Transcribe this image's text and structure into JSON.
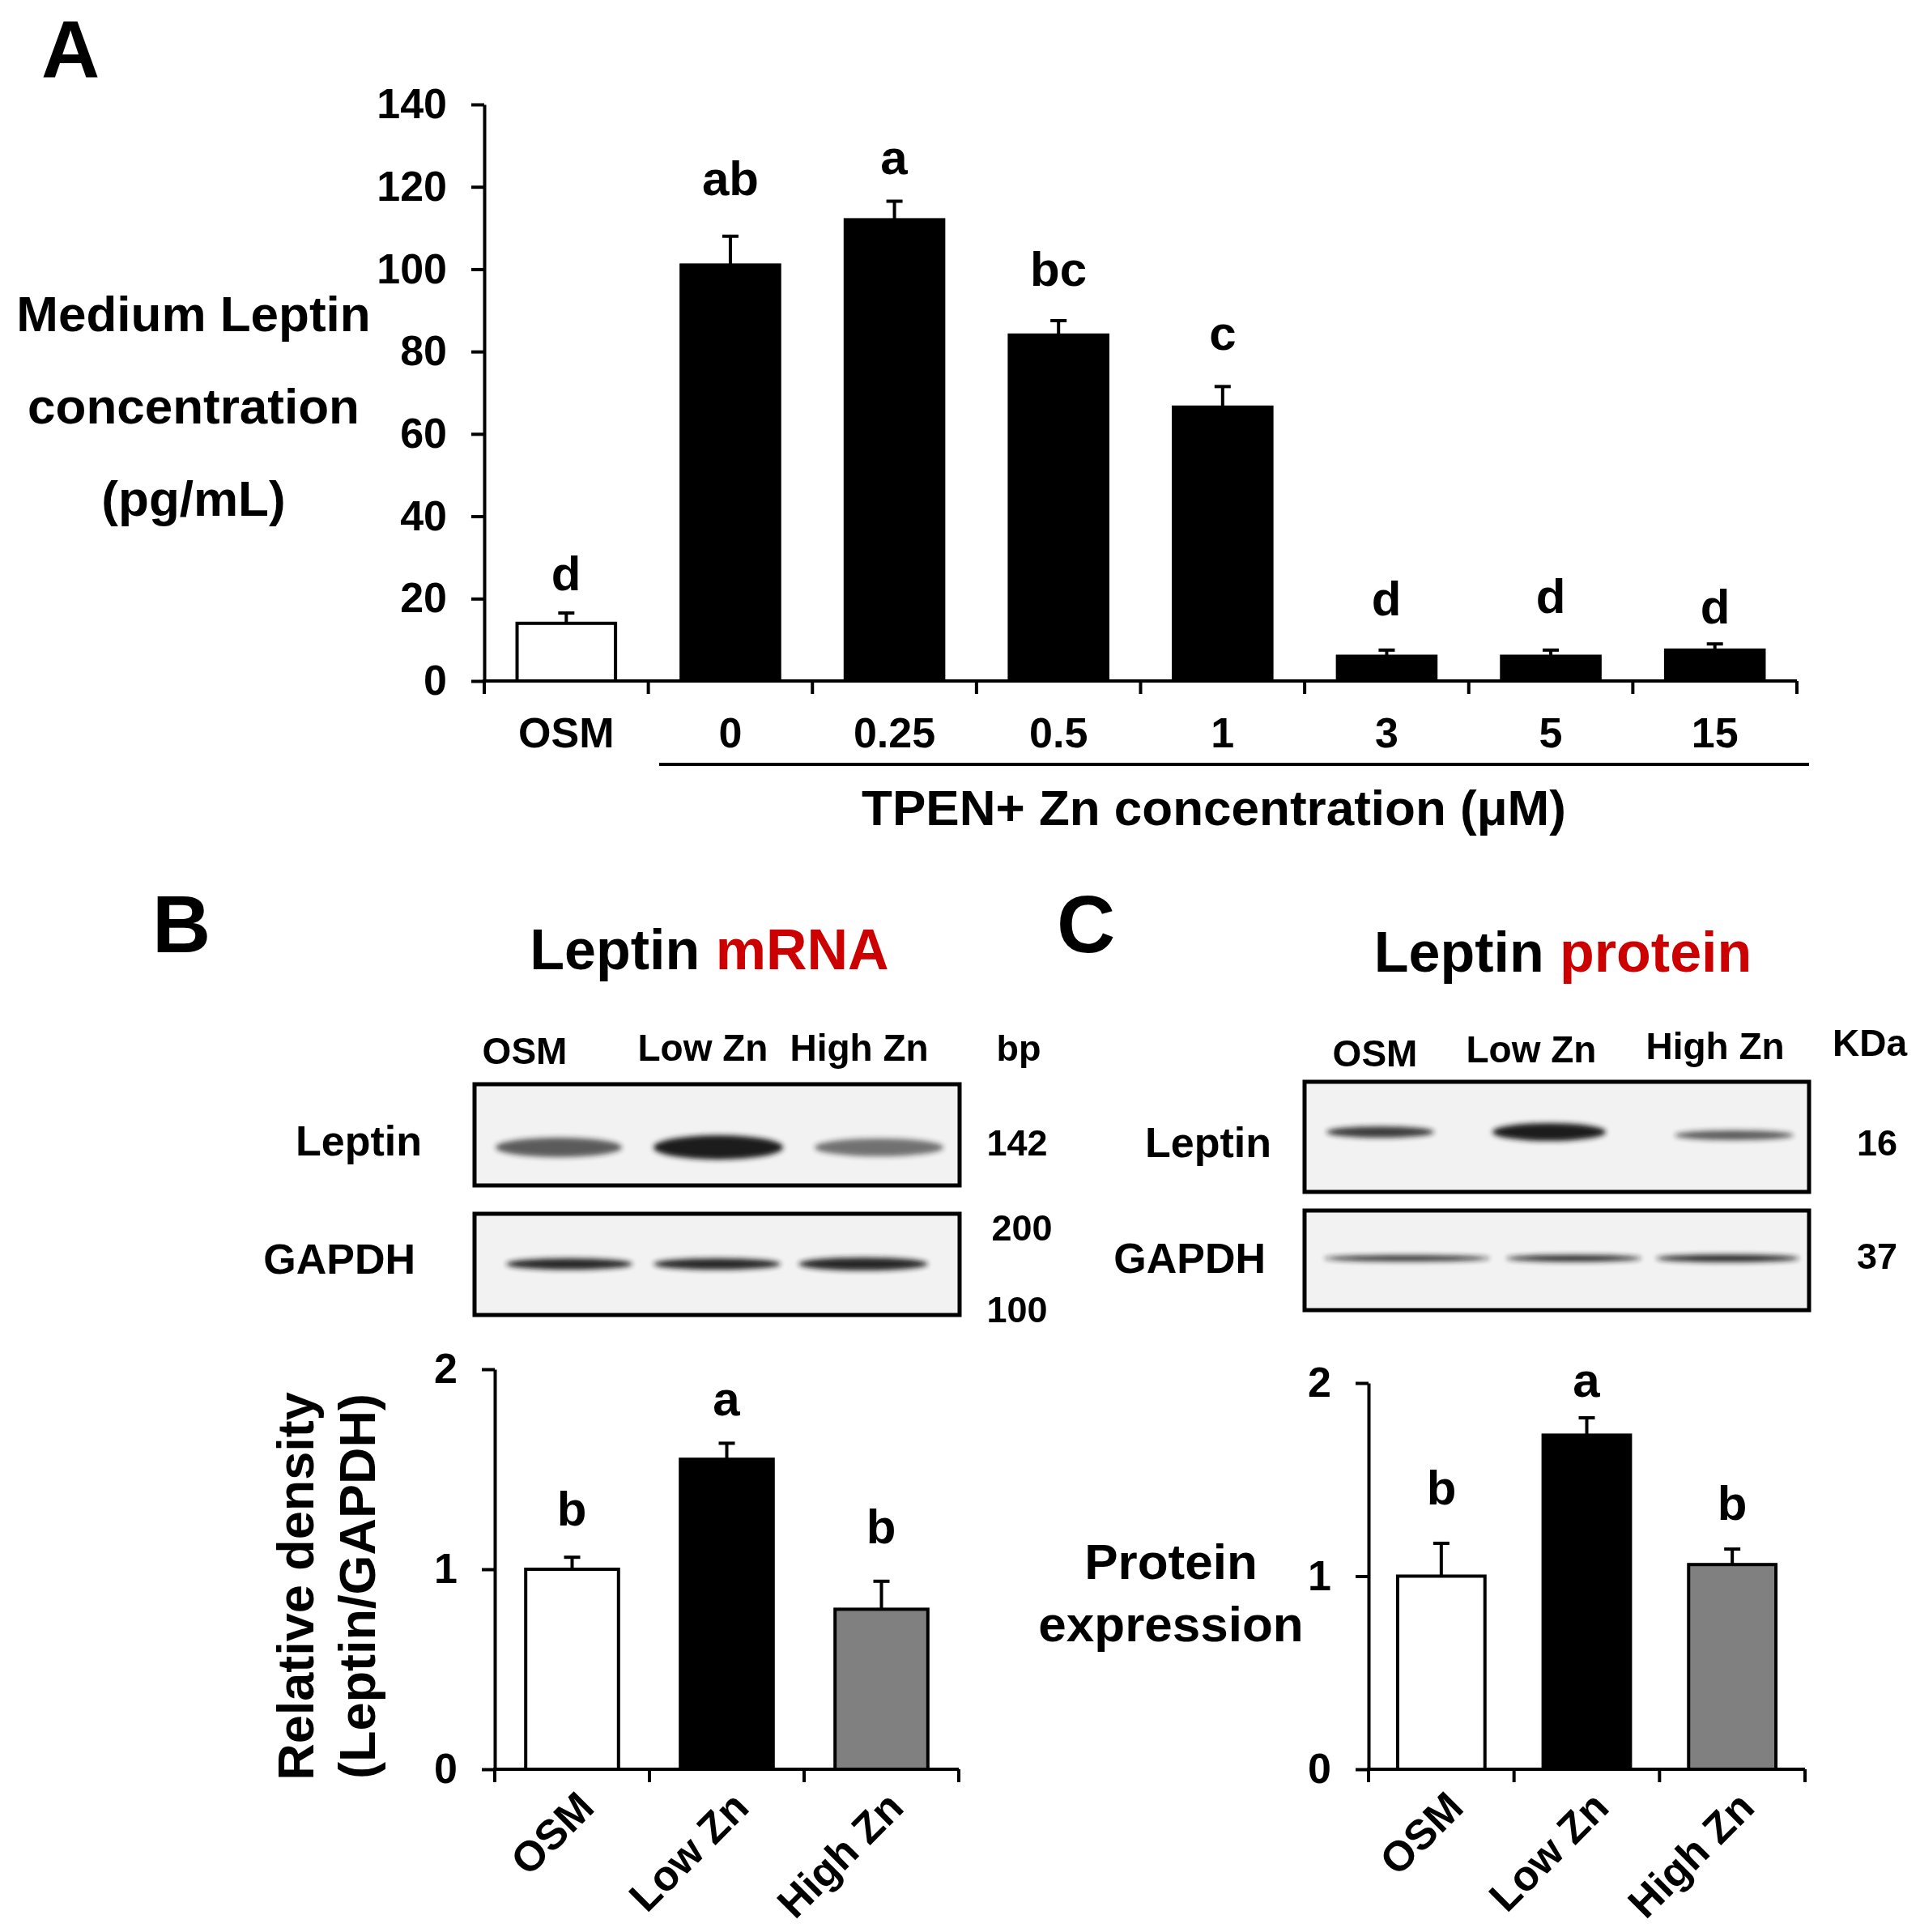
{
  "chart_data": [
    {
      "type": "bar",
      "categories": [
        "OSM",
        "0",
        "0.25",
        "0.5",
        "1",
        "3",
        "5",
        "15"
      ],
      "values": [
        14,
        101,
        112,
        84,
        66.5,
        6,
        6,
        7.5
      ],
      "colors": [
        "#ffffff",
        "#000000",
        "#000000",
        "#000000",
        "#000000",
        "#000000",
        "#000000",
        "#000000"
      ],
      "errors": [
        [
          14,
          16.5
        ],
        [
          101,
          108
        ],
        [
          112,
          116.5
        ],
        [
          84,
          87.5
        ],
        [
          66.5,
          71.5
        ],
        [
          6,
          7.5
        ],
        [
          6,
          7.5
        ],
        [
          7.5,
          9
        ]
      ],
      "ylim": [
        0,
        140
      ],
      "yticks": [
        0,
        20,
        40,
        60,
        80,
        100,
        120,
        140
      ],
      "xlabel": "TPEN+ Zn concentration (μM)",
      "ylabel": "Medium Leptin concentration (pg/mL)",
      "annotations": [
        "A",
        "d",
        "ab",
        "a",
        "bc",
        "c",
        "d",
        "d",
        "d"
      ]
    },
    {
      "type": "bar",
      "title": "Leptin mRNA",
      "categories": [
        "OSM",
        "Low Zn",
        "High Zn"
      ],
      "values": [
        1.0,
        1.55,
        0.8
      ],
      "colors": [
        "#ffffff",
        "#000000",
        "#808080"
      ],
      "errors": [
        [
          1.0,
          1.06
        ],
        [
          1.55,
          1.63
        ],
        [
          0.8,
          0.94
        ]
      ],
      "ylim": [
        0,
        2
      ],
      "yticks": [
        0,
        1,
        2
      ],
      "ylabel": "Relative density (Leptin/GAPDH)",
      "annotations": [
        "B",
        "OSM",
        "Low Zn",
        "High Zn",
        "bp",
        "Leptin",
        "142",
        "GAPDH",
        "200",
        "100",
        "b",
        "a",
        "b"
      ]
    },
    {
      "type": "bar",
      "title": "Leptin protein",
      "categories": [
        "OSM",
        "Low Zn",
        "High Zn"
      ],
      "values": [
        1.0,
        1.73,
        1.06
      ],
      "colors": [
        "#ffffff",
        "#000000",
        "#808080"
      ],
      "errors": [
        [
          1.0,
          1.17
        ],
        [
          1.73,
          1.82
        ],
        [
          1.06,
          1.14
        ]
      ],
      "ylim": [
        0,
        2
      ],
      "yticks": [
        0,
        1,
        2
      ],
      "ylabel": "Protein expression",
      "annotations": [
        "C",
        "OSM",
        "Low Zn",
        "High Zn",
        "KDa",
        "Leptin",
        "16",
        "GAPDH",
        "37",
        "b",
        "a",
        "b"
      ]
    }
  ]
}
